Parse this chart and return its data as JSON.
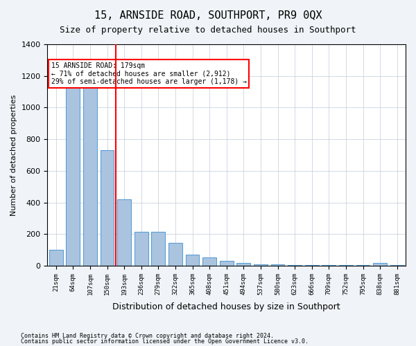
{
  "title": "15, ARNSIDE ROAD, SOUTHPORT, PR9 0QX",
  "subtitle": "Size of property relative to detached houses in Southport",
  "xlabel": "Distribution of detached houses by size in Southport",
  "ylabel": "Number of detached properties",
  "categories": [
    "21sqm",
    "64sqm",
    "107sqm",
    "150sqm",
    "193sqm",
    "236sqm",
    "279sqm",
    "322sqm",
    "365sqm",
    "408sqm",
    "451sqm",
    "494sqm",
    "537sqm",
    "580sqm",
    "623sqm",
    "666sqm",
    "709sqm",
    "752sqm",
    "795sqm",
    "838sqm",
    "881sqm"
  ],
  "values": [
    100,
    1150,
    1150,
    730,
    420,
    215,
    215,
    145,
    70,
    50,
    30,
    15,
    10,
    10,
    5,
    5,
    3,
    2,
    2,
    15,
    5
  ],
  "bar_color": "#aac4e0",
  "bar_edge_color": "#5a9fd4",
  "property_size": 179,
  "property_bin_index": 4,
  "red_line_label": "15 ARNSIDE ROAD: 179sqm",
  "annotation_line1": "← 71% of detached houses are smaller (2,912)",
  "annotation_line2": "29% of semi-detached houses are larger (1,178) →",
  "ylim": [
    0,
    1400
  ],
  "yticks": [
    0,
    200,
    400,
    600,
    800,
    1000,
    1200,
    1400
  ],
  "footer_line1": "Contains HM Land Registry data © Crown copyright and database right 2024.",
  "footer_line2": "Contains public sector information licensed under the Open Government Licence v3.0.",
  "bg_color": "#f0f4f8",
  "plot_bg_color": "#ffffff",
  "grid_color": "#c0ccda"
}
